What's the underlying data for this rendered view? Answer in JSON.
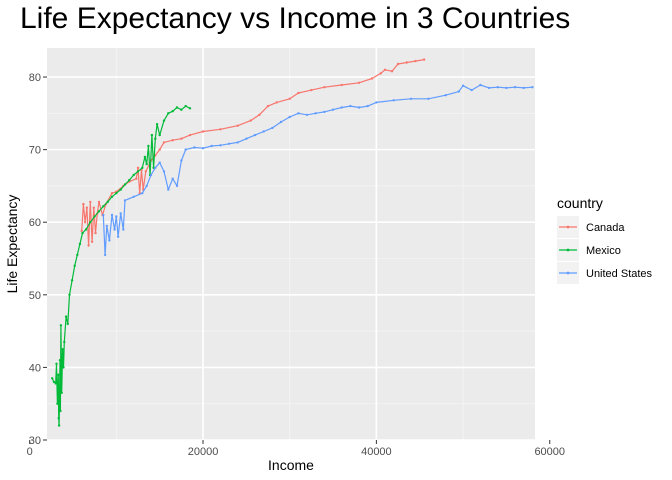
{
  "chart_data": {
    "type": "line",
    "title": "Life Expectancy vs Income in 3 Countries",
    "xlabel": "Income",
    "ylabel": "Life Expectancy",
    "xlim": [
      2000,
      58300
    ],
    "ylim": [
      30,
      84
    ],
    "x_ticks": [
      0,
      20000,
      40000,
      60000
    ],
    "x_tick_labels": [
      "0",
      "20000",
      "40000",
      "60000"
    ],
    "y_ticks": [
      30,
      40,
      50,
      60,
      70,
      80
    ],
    "y_tick_labels": [
      "30",
      "40",
      "50",
      "60",
      "70",
      "80"
    ],
    "grid": true,
    "legend": {
      "title": "country",
      "position": "right"
    },
    "series": [
      {
        "name": "Canada",
        "color": "#F8766D",
        "points": [
          [
            6000,
            58.8
          ],
          [
            6200,
            62.5
          ],
          [
            6400,
            60.0
          ],
          [
            6600,
            62.0
          ],
          [
            6800,
            56.8
          ],
          [
            7000,
            62.8
          ],
          [
            7200,
            57.3
          ],
          [
            7400,
            62.0
          ],
          [
            7600,
            58.5
          ],
          [
            7800,
            61.2
          ],
          [
            8000,
            62.8
          ],
          [
            8400,
            61.0
          ],
          [
            8800,
            62.5
          ],
          [
            9500,
            64.0
          ],
          [
            10000,
            64.2
          ],
          [
            10800,
            65.0
          ],
          [
            11500,
            65.6
          ],
          [
            12300,
            66.0
          ],
          [
            12500,
            67.5
          ],
          [
            12700,
            64.0
          ],
          [
            12900,
            67.2
          ],
          [
            13100,
            64.5
          ],
          [
            13400,
            67.0
          ],
          [
            14000,
            68.5
          ],
          [
            14500,
            69.2
          ],
          [
            15000,
            70.0
          ],
          [
            15500,
            71.0
          ],
          [
            16500,
            71.3
          ],
          [
            17500,
            71.5
          ],
          [
            18500,
            72.0
          ],
          [
            20000,
            72.5
          ],
          [
            22000,
            72.8
          ],
          [
            24000,
            73.3
          ],
          [
            25500,
            74.0
          ],
          [
            26500,
            74.8
          ],
          [
            27500,
            76.0
          ],
          [
            28500,
            76.5
          ],
          [
            30000,
            77.0
          ],
          [
            31000,
            77.8
          ],
          [
            32500,
            78.2
          ],
          [
            34000,
            78.6
          ],
          [
            36000,
            78.9
          ],
          [
            38000,
            79.2
          ],
          [
            39500,
            79.8
          ],
          [
            40500,
            80.5
          ],
          [
            41000,
            81.0
          ],
          [
            41800,
            80.8
          ],
          [
            42500,
            81.8
          ],
          [
            43500,
            82.0
          ],
          [
            44500,
            82.2
          ],
          [
            45500,
            82.4
          ]
        ]
      },
      {
        "name": "Mexico",
        "color": "#00BA38",
        "points": [
          [
            2600,
            38.5
          ],
          [
            2800,
            38.0
          ],
          [
            3000,
            37.8
          ],
          [
            3100,
            40.5
          ],
          [
            3200,
            35.0
          ],
          [
            3300,
            39.0
          ],
          [
            3350,
            33.0
          ],
          [
            3400,
            32.0
          ],
          [
            3500,
            41.0
          ],
          [
            3550,
            34.0
          ],
          [
            3600,
            45.8
          ],
          [
            3700,
            36.5
          ],
          [
            3800,
            42.5
          ],
          [
            3900,
            40.0
          ],
          [
            4000,
            43.5
          ],
          [
            4200,
            47.0
          ],
          [
            4400,
            46.0
          ],
          [
            4600,
            50.0
          ],
          [
            4900,
            52.0
          ],
          [
            5200,
            54.0
          ],
          [
            5500,
            55.5
          ],
          [
            5800,
            57.0
          ],
          [
            6100,
            58.5
          ],
          [
            6500,
            59.0
          ],
          [
            7000,
            60.0
          ],
          [
            7500,
            60.8
          ],
          [
            8000,
            61.5
          ],
          [
            8500,
            62.2
          ],
          [
            9000,
            62.8
          ],
          [
            9500,
            63.5
          ],
          [
            10000,
            64.0
          ],
          [
            10500,
            64.5
          ],
          [
            11000,
            65.2
          ],
          [
            11500,
            65.8
          ],
          [
            12000,
            66.5
          ],
          [
            12500,
            67.0
          ],
          [
            13000,
            67.5
          ],
          [
            13300,
            69.0
          ],
          [
            13500,
            68.0
          ],
          [
            13700,
            70.5
          ],
          [
            13900,
            66.5
          ],
          [
            14100,
            72.0
          ],
          [
            14300,
            67.5
          ],
          [
            14500,
            71.5
          ],
          [
            14700,
            73.5
          ],
          [
            15000,
            72.0
          ],
          [
            15500,
            74.0
          ],
          [
            16000,
            75.0
          ],
          [
            16500,
            75.3
          ],
          [
            17000,
            75.8
          ],
          [
            17500,
            75.5
          ],
          [
            18000,
            76.0
          ],
          [
            18500,
            75.7
          ]
        ]
      },
      {
        "name": "United States",
        "color": "#619CFF",
        "points": [
          [
            8500,
            61.0
          ],
          [
            8700,
            55.5
          ],
          [
            8900,
            59.5
          ],
          [
            9200,
            57.5
          ],
          [
            9500,
            61.0
          ],
          [
            9800,
            59.0
          ],
          [
            10000,
            60.8
          ],
          [
            10200,
            58.0
          ],
          [
            10500,
            61.2
          ],
          [
            10800,
            59.0
          ],
          [
            11000,
            63.0
          ],
          [
            12000,
            63.5
          ],
          [
            13000,
            64.0
          ],
          [
            13500,
            65.0
          ],
          [
            14000,
            66.5
          ],
          [
            14500,
            67.5
          ],
          [
            15000,
            68.2
          ],
          [
            15500,
            67.0
          ],
          [
            16000,
            64.5
          ],
          [
            16500,
            66.0
          ],
          [
            17000,
            65.0
          ],
          [
            17500,
            68.5
          ],
          [
            18000,
            70.0
          ],
          [
            19000,
            70.3
          ],
          [
            20000,
            70.2
          ],
          [
            21000,
            70.5
          ],
          [
            22000,
            70.6
          ],
          [
            23000,
            70.8
          ],
          [
            24000,
            71.0
          ],
          [
            25000,
            71.5
          ],
          [
            26000,
            72.0
          ],
          [
            27000,
            72.5
          ],
          [
            28000,
            73.0
          ],
          [
            29000,
            73.8
          ],
          [
            30000,
            74.5
          ],
          [
            31000,
            75.0
          ],
          [
            32000,
            74.8
          ],
          [
            33000,
            75.0
          ],
          [
            34000,
            75.2
          ],
          [
            35000,
            75.5
          ],
          [
            36000,
            75.8
          ],
          [
            37000,
            76.0
          ],
          [
            38000,
            75.8
          ],
          [
            39000,
            76.0
          ],
          [
            40000,
            76.5
          ],
          [
            42000,
            76.8
          ],
          [
            44000,
            77.0
          ],
          [
            46000,
            77.0
          ],
          [
            48000,
            77.5
          ],
          [
            49500,
            78.0
          ],
          [
            50000,
            78.8
          ],
          [
            51000,
            78.2
          ],
          [
            52000,
            78.9
          ],
          [
            53000,
            78.5
          ],
          [
            54000,
            78.6
          ],
          [
            55000,
            78.5
          ],
          [
            56000,
            78.6
          ],
          [
            57000,
            78.5
          ],
          [
            58000,
            78.6
          ]
        ]
      }
    ]
  }
}
